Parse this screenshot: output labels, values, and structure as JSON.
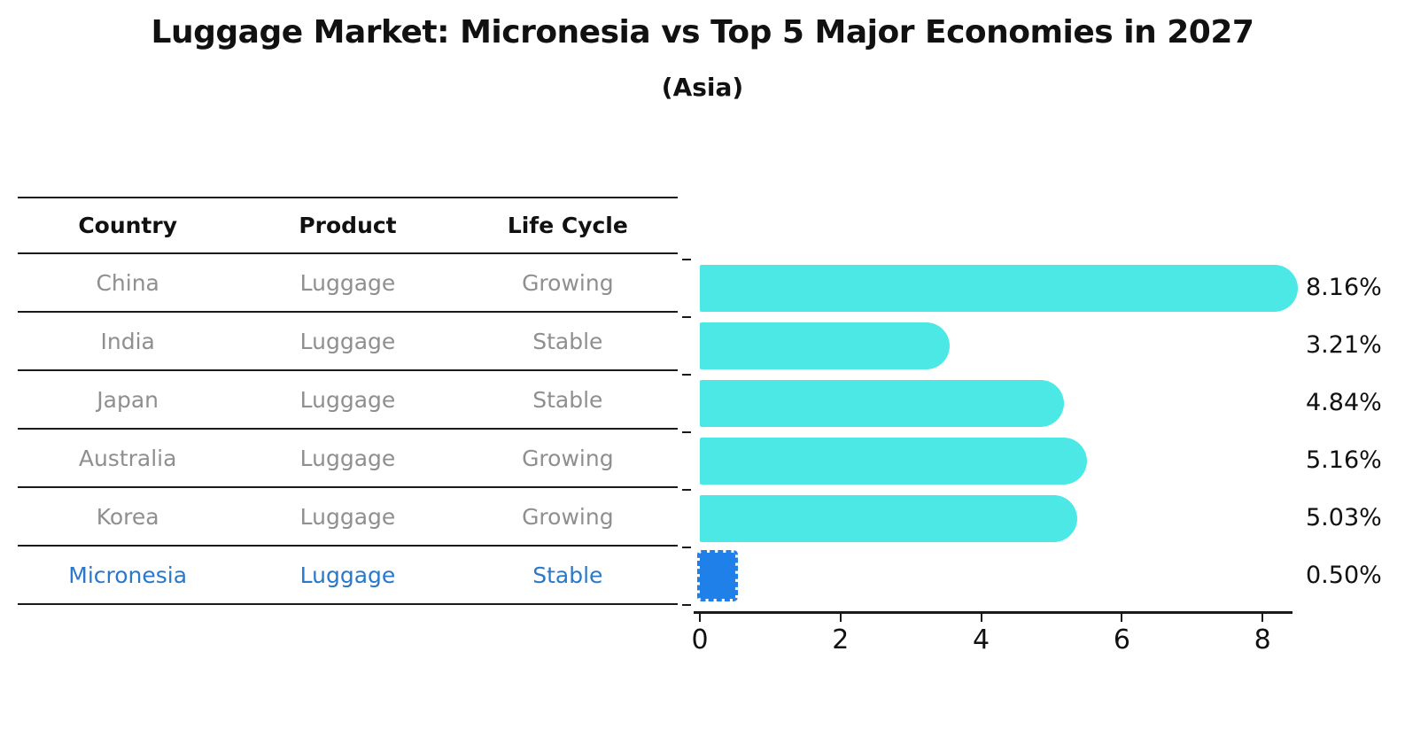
{
  "header": {
    "title": "Luggage Market: Micronesia vs Top 5 Major Economies in 2027",
    "subtitle": "(Asia)"
  },
  "table": {
    "headers": [
      "Country",
      "Product",
      "Life Cycle"
    ],
    "rows": [
      {
        "country": "China",
        "product": "Luggage",
        "life_cycle": "Growing",
        "highlight": false
      },
      {
        "country": "India",
        "product": "Luggage",
        "life_cycle": "Stable",
        "highlight": false
      },
      {
        "country": "Japan",
        "product": "Luggage",
        "life_cycle": "Stable",
        "highlight": false
      },
      {
        "country": "Australia",
        "product": "Luggage",
        "life_cycle": "Growing",
        "highlight": false
      },
      {
        "country": "Korea",
        "product": "Luggage",
        "life_cycle": "Growing",
        "highlight": false
      },
      {
        "country": "Micronesia",
        "product": "Luggage",
        "life_cycle": "Stable",
        "highlight": true
      }
    ]
  },
  "chart_data": {
    "type": "bar",
    "orientation": "horizontal",
    "title": "Luggage Market: Micronesia vs Top 5 Major Economies in 2027",
    "subtitle": "(Asia)",
    "categories": [
      "China",
      "India",
      "Japan",
      "Australia",
      "Korea",
      "Micronesia"
    ],
    "values": [
      8.16,
      3.21,
      4.84,
      5.16,
      5.03,
      0.5
    ],
    "value_labels": [
      "8.16%",
      "3.21%",
      "4.84%",
      "5.16%",
      "5.03%",
      "0.50%"
    ],
    "xlabel": "",
    "ylabel": "",
    "xlim": [
      0,
      8.6
    ],
    "x_ticks": [
      0,
      2,
      4,
      6,
      8
    ],
    "x_tick_labels": [
      "0",
      "2",
      "4",
      "6",
      "8"
    ],
    "grid": false,
    "legend": null,
    "bar_color": "#4be8e6",
    "highlight_index": 5,
    "highlight_bar_color": "#1e80e8",
    "highlight_bar_style": "dashed-outline",
    "highlight_text_color": "#2878cb"
  }
}
